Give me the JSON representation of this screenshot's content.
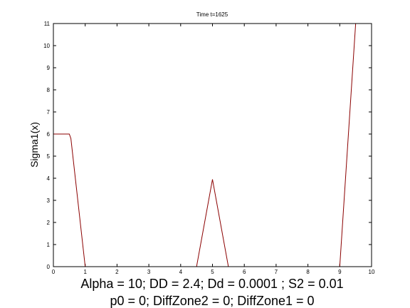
{
  "chart_data": {
    "type": "line",
    "title": "Time t=1625",
    "ylabel": "Sigma1(x)",
    "xlabel_lines": [
      "Alpha = 10;  DD =  2.4; Dd = 0.0001 ; S2 = 0.01",
      "p0 = 0; DiffZone2 = 0; DiffZone1 = 0"
    ],
    "xlim": [
      0,
      10
    ],
    "ylim": [
      0,
      11
    ],
    "xticks": [
      "0",
      "1",
      "2",
      "3",
      "4",
      "5",
      "6",
      "7",
      "8",
      "9",
      "10"
    ],
    "yticks": [
      "0",
      "1",
      "2",
      "3",
      "4",
      "5",
      "6",
      "7",
      "8",
      "9",
      "10",
      "11"
    ],
    "grid": false,
    "series": [
      {
        "color": "#8b0000",
        "x": [
          0,
          0.5,
          0.55,
          1.0,
          4.5,
          5.0,
          5.5,
          9.0,
          9.5,
          10.0
        ],
        "y": [
          6.0,
          6.0,
          5.8,
          0,
          0,
          3.95,
          0,
          0,
          11,
          11
        ]
      }
    ]
  }
}
